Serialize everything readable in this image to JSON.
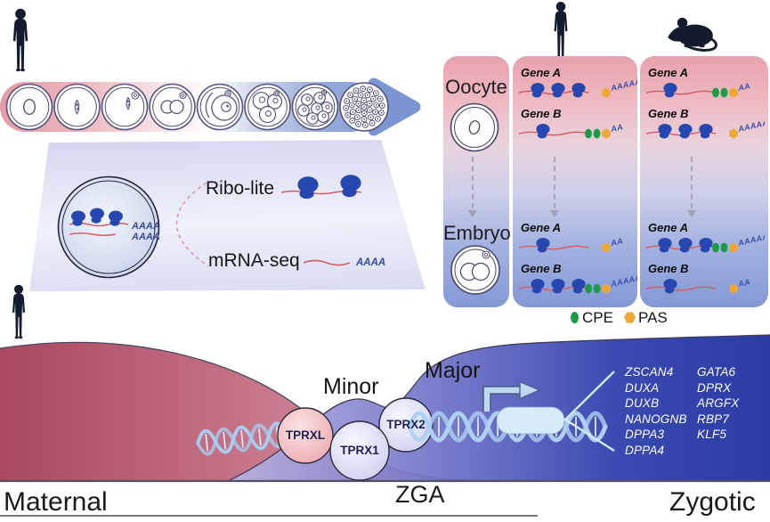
{
  "palette": {
    "maternal_red": "#aa4861",
    "zygotic_blue": "#1b2d9e",
    "ribosome_blue": "#2747b0",
    "mrna_red": "#d2606b",
    "cpe_green": "#1b9b49",
    "pas_orange": "#eca937"
  },
  "development_arrow": {
    "species_icon": "human-icon",
    "stages": [
      "oocyte",
      "mii-oocyte",
      "fertilized-egg",
      "pronuclear-zygote",
      "2-cell",
      "4-cell",
      "8-cell",
      "blastocyst"
    ]
  },
  "methods": {
    "ribo_label": "Ribo-lite",
    "mrna_label": "mRNA-seq",
    "polya_short": "AAAA",
    "cell_polya": [
      "AAAA",
      "AAAA"
    ]
  },
  "comparison": {
    "stage_labels": {
      "oocyte": "Oocyte",
      "embryo": "Embryo"
    },
    "legend": [
      {
        "label": "CPE",
        "color": "#1b9b49",
        "shape": "ellipse"
      },
      {
        "label": "PAS",
        "color": "#eca937",
        "shape": "hexagon"
      }
    ],
    "species": [
      {
        "name": "human",
        "icon": "human-icon",
        "oocyte": [
          {
            "gene": "Gene A",
            "ribosomes": 3,
            "cpe": 0,
            "pas": 1,
            "tail": "AAAAAAA"
          },
          {
            "gene": "Gene B",
            "ribosomes": 1,
            "cpe": 2,
            "pas": 1,
            "tail": "AA"
          }
        ],
        "embryo": [
          {
            "gene": "Gene A",
            "ribosomes": 1,
            "cpe": 0,
            "pas": 1,
            "tail": "AA"
          },
          {
            "gene": "Gene B",
            "ribosomes": 3,
            "cpe": 2,
            "pas": 1,
            "tail": "AAAAAA"
          }
        ]
      },
      {
        "name": "mouse",
        "icon": "mouse-icon",
        "oocyte": [
          {
            "gene": "Gene A",
            "ribosomes": 1,
            "cpe": 2,
            "pas": 1,
            "tail": "AA"
          },
          {
            "gene": "Gene B",
            "ribosomes": 3,
            "cpe": 0,
            "pas": 1,
            "tail": "AAAAAAA"
          }
        ],
        "embryo": [
          {
            "gene": "Gene A",
            "ribosomes": 3,
            "cpe": 2,
            "pas": 1,
            "tail": "AAAAAA"
          },
          {
            "gene": "Gene B",
            "ribosomes": 1,
            "cpe": 0,
            "pas": 1,
            "tail": "AA"
          }
        ]
      }
    ]
  },
  "zga": {
    "minor_label": "Minor",
    "major_label": "Major",
    "factors": [
      "TPRXL",
      "TPRX1",
      "TPRX2"
    ],
    "target_genes_col1": [
      "ZSCAN4",
      "DUXA",
      "DUXB",
      "NANOGNB",
      "DPPA3",
      "DPPA4"
    ],
    "target_genes_col2": [
      "GATA6",
      "DPRX",
      "ARGFX",
      "RBP7",
      "KLF5"
    ],
    "maternal_label": "Maternal",
    "zga_label": "ZGA",
    "zygotic_label": "Zygotic"
  }
}
